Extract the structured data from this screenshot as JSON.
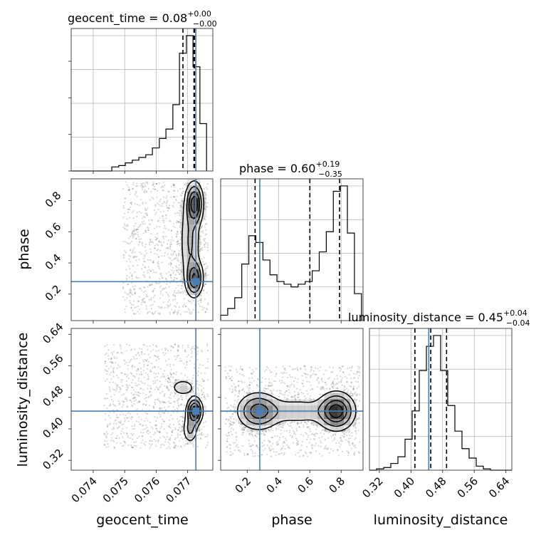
{
  "chart_data": {
    "type": "corner",
    "parameters": [
      "geocent_time",
      "phase",
      "luminosity_distance"
    ],
    "titles": [
      {
        "param": "geocent_time",
        "text": "geocent_time = 0.08",
        "sup": "+0.00",
        "sub": "−0.00"
      },
      {
        "param": "phase",
        "text": "phase = 0.60",
        "sup": "+0.19",
        "sub": "−0.35"
      },
      {
        "param": "luminosity_distance",
        "text": "luminosity_distance = 0.45",
        "sup": "+0.04",
        "sub": "−0.04"
      }
    ],
    "axis_labels": {
      "x": [
        "geocent_time",
        "phase",
        "luminosity_distance"
      ],
      "y": [
        "phase",
        "luminosity_distance"
      ]
    },
    "ranges": {
      "geocent_time": [
        0.0733,
        0.0778
      ],
      "phase": [
        0.03,
        0.94
      ],
      "luminosity_distance": [
        0.295,
        0.655
      ]
    },
    "ticks": {
      "geocent_time": [
        "0.074",
        "0.075",
        "0.076",
        "0.077"
      ],
      "phase": [
        "0.2",
        "0.4",
        "0.6",
        "0.8"
      ],
      "luminosity_distance": [
        "0.32",
        "0.40",
        "0.48",
        "0.56",
        "0.64"
      ]
    },
    "truths": {
      "geocent_time": 0.07726,
      "phase": 0.28,
      "luminosity_distance": 0.445
    },
    "quantiles": {
      "geocent_time": [
        0.07685,
        0.0772,
        0.07722
      ],
      "phase": [
        0.25,
        0.6,
        0.79
      ],
      "luminosity_distance": [
        0.41,
        0.45,
        0.49
      ]
    },
    "hist_1d": {
      "geocent_time": {
        "edges": [
          0.0733,
          0.07352,
          0.07373,
          0.07395,
          0.07416,
          0.07438,
          0.07459,
          0.07481,
          0.07502,
          0.07524,
          0.07545,
          0.07567,
          0.07588,
          0.0761,
          0.07631,
          0.07653,
          0.07674,
          0.07696,
          0.07717,
          0.07739,
          0.0776
        ],
        "counts": [
          0,
          0,
          0,
          0,
          0,
          0,
          0.03,
          0.04,
          0.06,
          0.08,
          0.1,
          0.12,
          0.17,
          0.24,
          0.31,
          0.49,
          0.87,
          1.0,
          0.77,
          0.35
        ]
      },
      "phase": {
        "edges": [
          0.03,
          0.075,
          0.12,
          0.165,
          0.21,
          0.255,
          0.3,
          0.345,
          0.39,
          0.435,
          0.48,
          0.525,
          0.57,
          0.615,
          0.66,
          0.705,
          0.75,
          0.795,
          0.84,
          0.885,
          0.93
        ],
        "counts": [
          0.04,
          0.09,
          0.17,
          0.42,
          0.63,
          0.58,
          0.45,
          0.34,
          0.29,
          0.27,
          0.25,
          0.27,
          0.29,
          0.37,
          0.51,
          0.66,
          0.96,
          1.0,
          0.65,
          0.2
        ]
      },
      "luminosity_distance": {
        "edges": [
          0.295,
          0.313,
          0.331,
          0.349,
          0.367,
          0.385,
          0.403,
          0.421,
          0.439,
          0.457,
          0.475,
          0.493,
          0.511,
          0.529,
          0.547,
          0.565,
          0.583,
          0.601,
          0.619,
          0.637,
          0.655
        ],
        "counts": [
          0,
          0.01,
          0.02,
          0.05,
          0.1,
          0.23,
          0.44,
          0.74,
          0.92,
          1.0,
          0.74,
          0.48,
          0.29,
          0.16,
          0.09,
          0.03,
          0.01,
          0,
          0,
          0
        ]
      }
    },
    "hist_2d": [
      {
        "x": "geocent_time",
        "y": "phase",
        "modes": [
          {
            "x": 0.07722,
            "y": 0.78,
            "w": 1.0,
            "sx": 0.00014,
            "sy": 0.07
          },
          {
            "x": 0.07722,
            "y": 0.3,
            "w": 0.85,
            "sx": 0.00014,
            "sy": 0.06
          },
          {
            "x": 0.07708,
            "y": 0.54,
            "w": 0.35,
            "sx": 0.00018,
            "sy": 0.17
          }
        ],
        "scatter_region": {
          "x": [
            0.07495,
            0.07765
          ],
          "y": [
            0.07,
            0.92
          ]
        }
      },
      {
        "x": "geocent_time",
        "y": "luminosity_distance",
        "modes": [
          {
            "x": 0.07722,
            "y": 0.445,
            "w": 1.0,
            "sx": 0.00013,
            "sy": 0.018
          },
          {
            "x": 0.07708,
            "y": 0.4,
            "w": 0.35,
            "sx": 0.00013,
            "sy": 0.02
          },
          {
            "x": 0.07685,
            "y": 0.505,
            "w": 0.25,
            "sx": 0.00022,
            "sy": 0.012
          }
        ],
        "scatter_region": {
          "x": [
            0.07435,
            0.07765
          ],
          "y": [
            0.35,
            0.615
          ]
        }
      },
      {
        "x": "phase",
        "y": "luminosity_distance",
        "modes": [
          {
            "x": 0.77,
            "y": 0.445,
            "w": 1.0,
            "sx": 0.06,
            "sy": 0.025
          },
          {
            "x": 0.27,
            "y": 0.445,
            "w": 0.7,
            "sx": 0.07,
            "sy": 0.025
          },
          {
            "x": 0.52,
            "y": 0.445,
            "w": 0.25,
            "sx": 0.15,
            "sy": 0.02
          }
        ],
        "scatter_region": {
          "x": [
            0.06,
            0.92
          ],
          "y": [
            0.33,
            0.56
          ]
        }
      }
    ],
    "colors": {
      "truth": "#4a7fb5",
      "contour": "#000000",
      "grid": "#b0b0b0",
      "density": "#000000",
      "points": "#000000"
    },
    "grid": true,
    "quantile_style": "dashed"
  }
}
